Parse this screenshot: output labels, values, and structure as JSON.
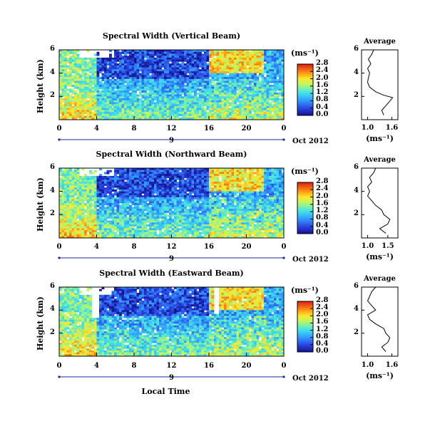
{
  "chart_data": [
    {
      "type": "heatmap",
      "title": "Spectral Width (Vertical Beam)",
      "ylabel": "Height (km)",
      "y_ticks": [
        "6",
        "4",
        "2"
      ],
      "x_ticks": [
        "0",
        "4",
        "8",
        "12",
        "16",
        "20",
        "0"
      ],
      "date_tick": "9",
      "date_label": "Oct 2012",
      "colorbar": {
        "unit": "(ms⁻¹)",
        "ticks": [
          "2.8",
          "2.4",
          "2.0",
          "1.6",
          "1.2",
          "0.8",
          "0.4",
          "0.0"
        ],
        "range": [
          0,
          2.8
        ]
      },
      "average": {
        "title": "Average",
        "xlabel": "(ms⁻¹)",
        "x_ticks": [
          "1.0",
          "1.6"
        ],
        "y_ticks": [
          "6",
          "4",
          "2"
        ],
        "profile": [
          [
            1.4,
            0.4
          ],
          [
            1.35,
            0.8
          ],
          [
            1.45,
            1.2
          ],
          [
            1.55,
            1.6
          ],
          [
            1.62,
            1.9
          ],
          [
            1.4,
            2.1
          ],
          [
            1.2,
            2.4
          ],
          [
            1.05,
            2.8
          ],
          [
            1.0,
            3.2
          ],
          [
            1.02,
            3.6
          ],
          [
            1.05,
            4.0
          ],
          [
            1.0,
            4.4
          ],
          [
            1.08,
            4.8
          ],
          [
            1.02,
            5.2
          ],
          [
            1.1,
            5.6
          ],
          [
            1.15,
            6.0
          ]
        ]
      }
    },
    {
      "type": "heatmap",
      "title": "Spectral Width (Northward Beam)",
      "ylabel": "Height (km)",
      "y_ticks": [
        "6",
        "4",
        "2"
      ],
      "x_ticks": [
        "0",
        "4",
        "8",
        "12",
        "16",
        "20",
        "0"
      ],
      "date_tick": "9",
      "date_label": "Oct 2012",
      "colorbar": {
        "unit": "(ms⁻¹)",
        "ticks": [
          "2.8",
          "2.4",
          "2.0",
          "1.6",
          "1.2",
          "0.8",
          "0.4",
          "0.0"
        ],
        "range": [
          0,
          2.8
        ]
      },
      "average": {
        "title": "Average",
        "xlabel": "(ms⁻¹)",
        "x_ticks": [
          "1.0",
          "1.5"
        ],
        "y_ticks": [
          "6",
          "4",
          "2"
        ],
        "profile": [
          [
            1.45,
            0.4
          ],
          [
            1.3,
            0.8
          ],
          [
            1.5,
            1.2
          ],
          [
            1.55,
            1.6
          ],
          [
            1.4,
            2.0
          ],
          [
            1.35,
            2.4
          ],
          [
            1.2,
            2.8
          ],
          [
            1.1,
            3.2
          ],
          [
            1.0,
            3.6
          ],
          [
            1.05,
            4.0
          ],
          [
            1.0,
            4.4
          ],
          [
            1.1,
            4.8
          ],
          [
            1.05,
            5.2
          ],
          [
            1.15,
            5.6
          ],
          [
            1.2,
            6.0
          ]
        ]
      }
    },
    {
      "type": "heatmap",
      "title": "Spectral Width (Eastward Beam)",
      "ylabel": "Height (km)",
      "y_ticks": [
        "6",
        "4",
        "2"
      ],
      "x_ticks": [
        "0",
        "4",
        "8",
        "12",
        "16",
        "20",
        "0"
      ],
      "xlabel": "Local Time",
      "date_tick": "9",
      "date_label": "Oct 2012",
      "colorbar": {
        "unit": "(ms⁻¹)",
        "ticks": [
          "2.8",
          "2.4",
          "2.0",
          "1.6",
          "1.2",
          "0.8",
          "0.4",
          "0.0"
        ],
        "range": [
          0,
          2.8
        ]
      },
      "average": {
        "title": "Average",
        "xlabel": "(ms⁻¹)",
        "x_ticks": [
          "1.0",
          "1.6"
        ],
        "y_ticks": [
          "6",
          "4",
          "2"
        ],
        "profile": [
          [
            1.45,
            0.4
          ],
          [
            1.35,
            0.8
          ],
          [
            1.5,
            1.2
          ],
          [
            1.55,
            1.6
          ],
          [
            1.45,
            2.0
          ],
          [
            1.4,
            2.4
          ],
          [
            1.2,
            2.8
          ],
          [
            1.05,
            3.2
          ],
          [
            1.0,
            3.6
          ],
          [
            1.2,
            4.0
          ],
          [
            1.1,
            4.4
          ],
          [
            1.0,
            4.8
          ],
          [
            1.05,
            5.2
          ],
          [
            1.1,
            5.6
          ],
          [
            1.2,
            6.0
          ]
        ]
      }
    }
  ]
}
